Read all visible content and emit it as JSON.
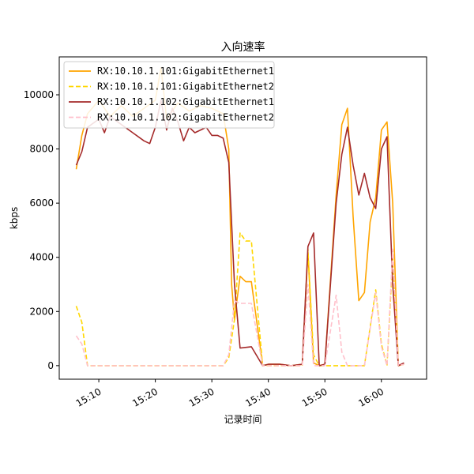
{
  "chart_data": {
    "type": "line",
    "title": "入向速率",
    "xlabel": "记录时间",
    "ylabel": "kbps",
    "xlim": [
      "15:03",
      "16:08"
    ],
    "ylim": [
      -500,
      11400
    ],
    "x_ticks": [
      "15:10",
      "15:20",
      "15:30",
      "15:40",
      "15:50",
      "16:00"
    ],
    "y_ticks": [
      0,
      2000,
      4000,
      6000,
      8000,
      10000
    ],
    "grid": false,
    "legend_position": "top-left",
    "series": [
      {
        "name": "RX:10.10.1.101:GigabitEthernet1",
        "color": "#FFA500",
        "style": "solid",
        "points": [
          [
            "15:06",
            7250
          ],
          [
            "15:07",
            8500
          ],
          [
            "15:08",
            9300
          ],
          [
            "15:10",
            9800
          ],
          [
            "15:12",
            9200
          ],
          [
            "15:14",
            9600
          ],
          [
            "15:16",
            9200
          ],
          [
            "15:18",
            9500
          ],
          [
            "15:20",
            9800
          ],
          [
            "15:21",
            11000
          ],
          [
            "15:22",
            9100
          ],
          [
            "15:24",
            9700
          ],
          [
            "15:26",
            9400
          ],
          [
            "15:28",
            9600
          ],
          [
            "15:30",
            9500
          ],
          [
            "15:32",
            9300
          ],
          [
            "15:33",
            8000
          ],
          [
            "15:33.5",
            3000
          ],
          [
            "15:34",
            1700
          ],
          [
            "15:35",
            3300
          ],
          [
            "15:36",
            3100
          ],
          [
            "15:37",
            3100
          ],
          [
            "15:39",
            0
          ],
          [
            "15:40",
            50
          ],
          [
            "15:42",
            50
          ],
          [
            "15:44",
            0
          ],
          [
            "15:46",
            50
          ],
          [
            "15:47",
            4200
          ],
          [
            "15:48",
            100
          ],
          [
            "15:49",
            0
          ],
          [
            "15:50",
            50
          ],
          [
            "15:52",
            6300
          ],
          [
            "15:53",
            8900
          ],
          [
            "15:54",
            9500
          ],
          [
            "15:55",
            5500
          ],
          [
            "15:56",
            2400
          ],
          [
            "15:57",
            2700
          ],
          [
            "15:58",
            5300
          ],
          [
            "15:59",
            6200
          ],
          [
            "16:00",
            8700
          ],
          [
            "16:01",
            9000
          ],
          [
            "16:02",
            6000
          ],
          [
            "16:03",
            0
          ],
          [
            "16:04",
            50
          ]
        ]
      },
      {
        "name": "RX:10.10.1.101:GigabitEthernet2",
        "color": "#FFD700",
        "style": "dashed",
        "points": [
          [
            "15:06",
            2200
          ],
          [
            "15:07",
            1600
          ],
          [
            "15:08",
            0
          ],
          [
            "15:10",
            0
          ],
          [
            "15:20",
            0
          ],
          [
            "15:30",
            0
          ],
          [
            "15:32",
            0
          ],
          [
            "15:33",
            300
          ],
          [
            "15:34",
            1700
          ],
          [
            "15:35",
            4900
          ],
          [
            "15:36",
            4600
          ],
          [
            "15:37",
            4600
          ],
          [
            "15:39",
            0
          ],
          [
            "15:40",
            0
          ],
          [
            "15:44",
            0
          ],
          [
            "15:46",
            0
          ],
          [
            "15:47",
            4300
          ],
          [
            "15:48",
            400
          ],
          [
            "15:49",
            0
          ],
          [
            "15:50",
            0
          ],
          [
            "15:52",
            0
          ],
          [
            "15:53",
            0
          ],
          [
            "15:54",
            0
          ],
          [
            "15:56",
            0
          ],
          [
            "15:57",
            0
          ],
          [
            "15:59",
            2800
          ],
          [
            "16:00",
            800
          ],
          [
            "16:01",
            0
          ],
          [
            "16:02",
            4000
          ],
          [
            "16:03",
            0
          ],
          [
            "16:04",
            50
          ]
        ]
      },
      {
        "name": "RX:10.10.1.102:GigabitEthernet1",
        "color": "#A52A2A",
        "style": "solid",
        "points": [
          [
            "15:06",
            7400
          ],
          [
            "15:07",
            7900
          ],
          [
            "15:08",
            8800
          ],
          [
            "15:10",
            9100
          ],
          [
            "15:11",
            8600
          ],
          [
            "15:12",
            9200
          ],
          [
            "15:14",
            8900
          ],
          [
            "15:16",
            8600
          ],
          [
            "15:18",
            8300
          ],
          [
            "15:19",
            8200
          ],
          [
            "15:20",
            8800
          ],
          [
            "15:21",
            9800
          ],
          [
            "15:22",
            8700
          ],
          [
            "15:23",
            9500
          ],
          [
            "15:24",
            9000
          ],
          [
            "15:25",
            8300
          ],
          [
            "15:26",
            8800
          ],
          [
            "15:27",
            8600
          ],
          [
            "15:28",
            8700
          ],
          [
            "15:29",
            8800
          ],
          [
            "15:30",
            8500
          ],
          [
            "15:31",
            8500
          ],
          [
            "15:32",
            8400
          ],
          [
            "15:33",
            7500
          ],
          [
            "15:34",
            3000
          ],
          [
            "15:35",
            650
          ],
          [
            "15:37",
            700
          ],
          [
            "15:39",
            0
          ],
          [
            "15:40",
            50
          ],
          [
            "15:42",
            50
          ],
          [
            "15:44",
            0
          ],
          [
            "15:46",
            50
          ],
          [
            "15:47",
            4400
          ],
          [
            "15:48",
            4900
          ],
          [
            "15:49",
            0
          ],
          [
            "15:50",
            50
          ],
          [
            "15:52",
            6000
          ],
          [
            "15:53",
            7800
          ],
          [
            "15:54",
            8800
          ],
          [
            "15:55",
            7400
          ],
          [
            "15:56",
            6300
          ],
          [
            "15:57",
            7100
          ],
          [
            "15:58",
            6200
          ],
          [
            "15:59",
            5800
          ],
          [
            "16:00",
            8000
          ],
          [
            "16:01",
            8450
          ],
          [
            "16:02",
            3000
          ],
          [
            "16:03",
            0
          ],
          [
            "16:04",
            100
          ]
        ]
      },
      {
        "name": "RX:10.10.1.102:GigabitEthernet2",
        "color": "#FFC0CB",
        "style": "dashed",
        "points": [
          [
            "15:06",
            1100
          ],
          [
            "15:07",
            800
          ],
          [
            "15:08",
            0
          ],
          [
            "15:10",
            0
          ],
          [
            "15:20",
            0
          ],
          [
            "15:30",
            0
          ],
          [
            "15:32",
            0
          ],
          [
            "15:33",
            400
          ],
          [
            "15:34",
            2400
          ],
          [
            "15:35",
            2300
          ],
          [
            "15:36",
            2300
          ],
          [
            "15:37",
            2300
          ],
          [
            "15:39",
            0
          ],
          [
            "15:40",
            0
          ],
          [
            "15:44",
            0
          ],
          [
            "15:46",
            0
          ],
          [
            "15:47",
            3000
          ],
          [
            "15:48",
            0
          ],
          [
            "15:50",
            0
          ],
          [
            "15:52",
            2600
          ],
          [
            "15:53",
            500
          ],
          [
            "15:54",
            0
          ],
          [
            "15:56",
            0
          ],
          [
            "15:57",
            0
          ],
          [
            "15:59",
            2700
          ],
          [
            "16:00",
            700
          ],
          [
            "16:01",
            0
          ],
          [
            "16:02",
            4300
          ],
          [
            "16:03",
            0
          ],
          [
            "16:04",
            50
          ]
        ]
      }
    ]
  }
}
